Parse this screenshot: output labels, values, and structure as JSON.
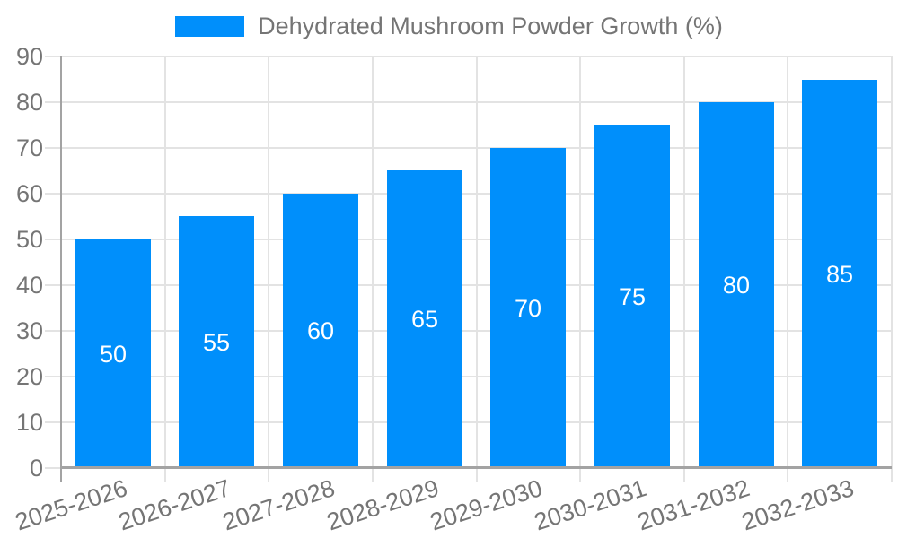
{
  "chart_data": {
    "type": "bar",
    "title": "Dehydrated Mushroom Powder Growth (%)",
    "legend": {
      "label": "Dehydrated Mushroom Powder Growth (%)",
      "position": "top"
    },
    "categories": [
      "2025-2026",
      "2026-2027",
      "2027-2028",
      "2028-2029",
      "2029-2030",
      "2030-2031",
      "2031-2032",
      "2032-2033"
    ],
    "values": [
      50,
      55,
      60,
      65,
      70,
      75,
      80,
      85
    ],
    "xlabel": "",
    "ylabel": "",
    "ylim": [
      0,
      90
    ],
    "yticks": [
      0,
      10,
      20,
      30,
      40,
      50,
      60,
      70,
      80,
      90
    ],
    "grid": true,
    "data_labels_shown": true,
    "colors": {
      "bar": "#008FFB",
      "grid_line": "#e3e3e3",
      "axis_line": "#a3a3a3",
      "axis_label": "#757575",
      "data_label": "#ffffff",
      "background": "#ffffff"
    }
  }
}
